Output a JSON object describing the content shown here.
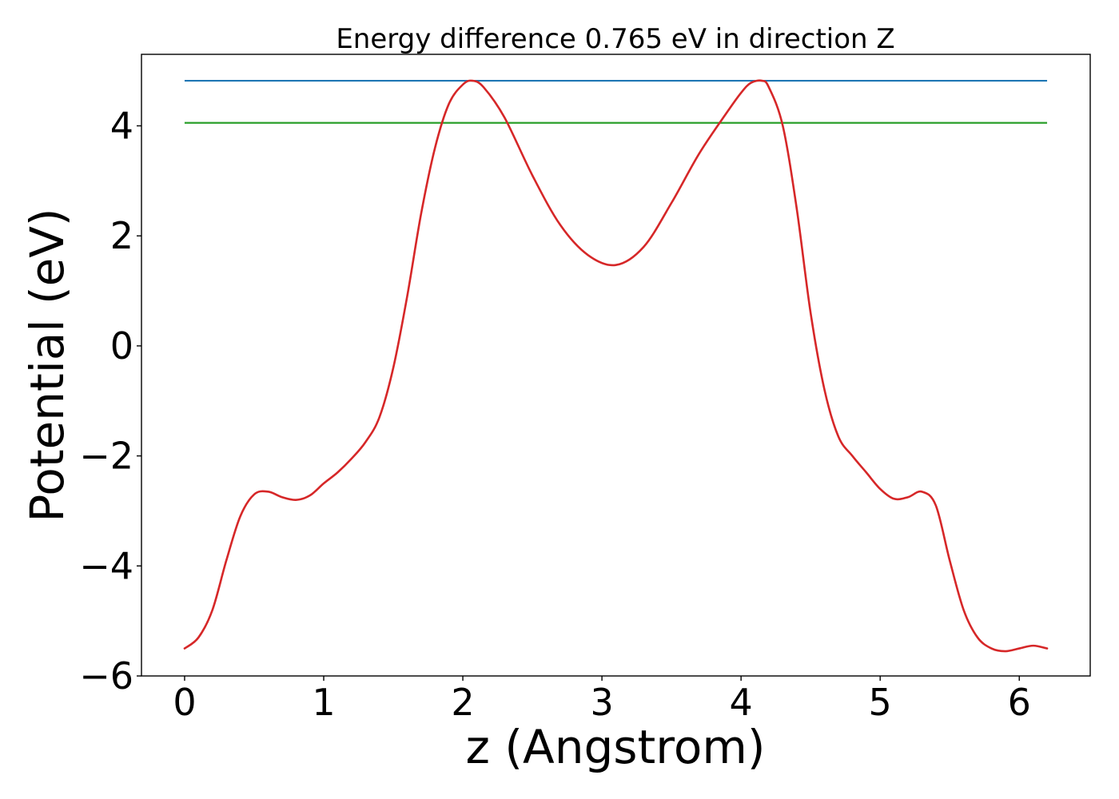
{
  "chart_data": {
    "type": "line",
    "title": "Energy difference 0.765 eV in direction Z",
    "xlabel": "z (Angstrom)",
    "ylabel": "Potential (eV)",
    "xlim": [
      -0.31,
      6.51
    ],
    "ylim": [
      -6.0,
      5.3
    ],
    "xticks": [
      0,
      1,
      2,
      3,
      4,
      5,
      6
    ],
    "xtick_labels": [
      "0",
      "1",
      "2",
      "3",
      "4",
      "5",
      "6"
    ],
    "yticks": [
      -6,
      -4,
      -2,
      0,
      2,
      4
    ],
    "ytick_labels": [
      "−6",
      "−4",
      "−2",
      "0",
      "2",
      "4"
    ],
    "grid": false,
    "legend": "none",
    "series": [
      {
        "color": "#d62728",
        "kind": "curve",
        "x": [
          0.0,
          0.1,
          0.2,
          0.3,
          0.4,
          0.5,
          0.6,
          0.7,
          0.8,
          0.9,
          1.0,
          1.1,
          1.2,
          1.3,
          1.4,
          1.5,
          1.6,
          1.7,
          1.8,
          1.9,
          2.0,
          2.07,
          2.15,
          2.3,
          2.5,
          2.7,
          2.9,
          3.1,
          3.3,
          3.5,
          3.7,
          3.9,
          4.0,
          4.07,
          4.15,
          4.2,
          4.3,
          4.4,
          4.5,
          4.6,
          4.7,
          4.8,
          4.9,
          5.0,
          5.1,
          5.2,
          5.3,
          5.4,
          5.5,
          5.6,
          5.7,
          5.8,
          5.9,
          6.0,
          6.1,
          6.2
        ],
        "y": [
          -5.5,
          -5.3,
          -4.8,
          -3.9,
          -3.1,
          -2.7,
          -2.65,
          -2.75,
          -2.8,
          -2.72,
          -2.5,
          -2.3,
          -2.05,
          -1.75,
          -1.3,
          -0.4,
          0.9,
          2.4,
          3.6,
          4.4,
          4.75,
          4.82,
          4.7,
          4.15,
          3.1,
          2.2,
          1.65,
          1.47,
          1.8,
          2.6,
          3.5,
          4.25,
          4.6,
          4.78,
          4.82,
          4.7,
          4.0,
          2.5,
          0.6,
          -0.8,
          -1.65,
          -2.0,
          -2.3,
          -2.6,
          -2.78,
          -2.75,
          -2.65,
          -2.9,
          -3.9,
          -4.8,
          -5.3,
          -5.5,
          -5.55,
          -5.5,
          -5.45,
          -5.5
        ]
      },
      {
        "color": "#1f77b4",
        "kind": "hline",
        "y": 4.82,
        "x": [
          0.0,
          6.2
        ]
      },
      {
        "color": "#2ca02c",
        "kind": "hline",
        "y": 4.055,
        "x": [
          0.0,
          6.2
        ]
      }
    ]
  }
}
